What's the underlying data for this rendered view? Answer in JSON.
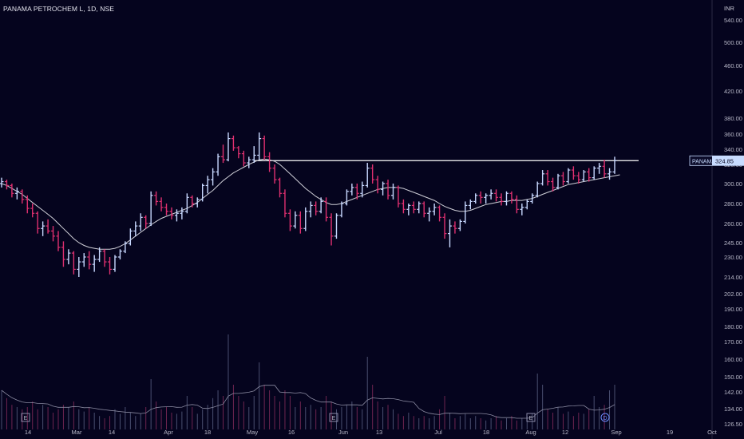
{
  "header": {
    "title": "PANAMA PETROCHEM L, 1D, NSE",
    "currency": "INR"
  },
  "colors": {
    "background": "#05041e",
    "up": "#c8d8ff",
    "down": "#e03070",
    "ma_line": "#d0d0d8",
    "resistance": "#ffffff",
    "price_tag": "#c8dcff",
    "volume_up": "#4a4f70",
    "volume_down": "#6e2550",
    "volume_ma": "#8a8aa0"
  },
  "chart_data": {
    "type": "ohlc",
    "scale": "log",
    "symbol_tag": "PANAMAPET",
    "last_price": "324.85",
    "resistance_level": 324.85,
    "ylim": [
      126.5,
      560
    ],
    "yticks": [
      "540.00",
      "500.00",
      "460.00",
      "420.00",
      "380.00",
      "360.00",
      "340.00",
      "320.00",
      "300.00",
      "280.00",
      "260.00",
      "245.00",
      "230.00",
      "214.00",
      "202.00",
      "190.00",
      "180.00",
      "170.00",
      "160.00",
      "150.00",
      "142.00",
      "134.00",
      "126.50"
    ],
    "xlabels": [
      "14",
      "Mar",
      "14",
      "Apr",
      "18",
      "May",
      "16",
      "Jun",
      "13",
      "Jul",
      "18",
      "Aug",
      "12",
      "Sep",
      "19",
      "Oct"
    ],
    "events": [
      "E",
      "E",
      "E",
      "D"
    ],
    "series": [
      {
        "kind": "price",
        "points": [
          [
            300,
            306,
            296,
            302
          ],
          [
            302,
            304,
            294,
            298
          ],
          [
            298,
            300,
            286,
            290
          ],
          [
            290,
            296,
            284,
            292
          ],
          [
            292,
            294,
            280,
            284
          ],
          [
            284,
            288,
            270,
            275
          ],
          [
            275,
            280,
            266,
            270
          ],
          [
            270,
            272,
            252,
            256
          ],
          [
            256,
            262,
            250,
            258
          ],
          [
            258,
            264,
            252,
            254
          ],
          [
            254,
            258,
            246,
            250
          ],
          [
            250,
            254,
            236,
            240
          ],
          [
            240,
            246,
            222,
            228
          ],
          [
            228,
            238,
            224,
            234
          ],
          [
            234,
            236,
            216,
            220
          ],
          [
            220,
            230,
            214,
            226
          ],
          [
            226,
            234,
            222,
            230
          ],
          [
            230,
            236,
            220,
            224
          ],
          [
            224,
            232,
            218,
            228
          ],
          [
            228,
            240,
            226,
            236
          ],
          [
            236,
            238,
            222,
            226
          ],
          [
            226,
            230,
            216,
            220
          ],
          [
            220,
            232,
            218,
            230
          ],
          [
            230,
            238,
            228,
            236
          ],
          [
            236,
            246,
            234,
            244
          ],
          [
            244,
            256,
            242,
            254
          ],
          [
            254,
            262,
            250,
            258
          ],
          [
            258,
            270,
            254,
            266
          ],
          [
            266,
            268,
            256,
            260
          ],
          [
            260,
            292,
            258,
            288
          ],
          [
            288,
            292,
            278,
            282
          ],
          [
            282,
            286,
            272,
            276
          ],
          [
            276,
            280,
            268,
            272
          ],
          [
            272,
            276,
            264,
            268
          ],
          [
            268,
            274,
            262,
            270
          ],
          [
            270,
            276,
            264,
            272
          ],
          [
            272,
            290,
            270,
            286
          ],
          [
            286,
            288,
            276,
            280
          ],
          [
            280,
            286,
            276,
            284
          ],
          [
            284,
            300,
            282,
            298
          ],
          [
            298,
            308,
            290,
            304
          ],
          [
            304,
            316,
            298,
            312
          ],
          [
            312,
            334,
            308,
            330
          ],
          [
            330,
            346,
            322,
            326
          ],
          [
            326,
            362,
            324,
            354
          ],
          [
            354,
            358,
            338,
            342
          ],
          [
            342,
            344,
            328,
            334
          ],
          [
            334,
            338,
            318,
            322
          ],
          [
            322,
            330,
            316,
            326
          ],
          [
            326,
            344,
            322,
            332
          ],
          [
            332,
            362,
            326,
            354
          ],
          [
            354,
            358,
            326,
            330
          ],
          [
            330,
            336,
            312,
            316
          ],
          [
            316,
            320,
            300,
            304
          ],
          [
            304,
            306,
            286,
            290
          ],
          [
            290,
            294,
            266,
            270
          ],
          [
            270,
            274,
            254,
            258
          ],
          [
            258,
            272,
            256,
            268
          ],
          [
            268,
            272,
            252,
            256
          ],
          [
            256,
            276,
            254,
            272
          ],
          [
            272,
            282,
            266,
            278
          ],
          [
            278,
            282,
            268,
            272
          ],
          [
            272,
            286,
            270,
            282
          ],
          [
            282,
            286,
            262,
            266
          ],
          [
            266,
            270,
            242,
            250
          ],
          [
            250,
            270,
            248,
            268
          ],
          [
            268,
            282,
            266,
            280
          ],
          [
            280,
            294,
            278,
            292
          ],
          [
            292,
            300,
            288,
            296
          ],
          [
            296,
            300,
            284,
            290
          ],
          [
            290,
            302,
            286,
            298
          ],
          [
            298,
            322,
            296,
            316
          ],
          [
            316,
            320,
            300,
            304
          ],
          [
            304,
            308,
            290,
            294
          ],
          [
            294,
            302,
            288,
            300
          ],
          [
            300,
            304,
            284,
            288
          ],
          [
            288,
            300,
            284,
            296
          ],
          [
            296,
            298,
            276,
            280
          ],
          [
            280,
            284,
            270,
            274
          ],
          [
            274,
            280,
            268,
            278
          ],
          [
            278,
            282,
            270,
            274
          ],
          [
            274,
            282,
            270,
            280
          ],
          [
            280,
            282,
            266,
            270
          ],
          [
            270,
            276,
            262,
            272
          ],
          [
            272,
            280,
            268,
            276
          ],
          [
            276,
            278,
            262,
            266
          ],
          [
            266,
            270,
            248,
            252
          ],
          [
            252,
            264,
            240,
            258
          ],
          [
            258,
            262,
            252,
            256
          ],
          [
            256,
            264,
            254,
            262
          ],
          [
            262,
            282,
            260,
            278
          ],
          [
            278,
            284,
            274,
            282
          ],
          [
            282,
            290,
            280,
            288
          ],
          [
            288,
            292,
            280,
            286
          ],
          [
            286,
            290,
            280,
            288
          ],
          [
            288,
            294,
            284,
            290
          ],
          [
            290,
            294,
            282,
            286
          ],
          [
            286,
            290,
            278,
            282
          ],
          [
            282,
            292,
            278,
            290
          ],
          [
            290,
            292,
            280,
            284
          ],
          [
            284,
            288,
            270,
            274
          ],
          [
            274,
            280,
            268,
            276
          ],
          [
            276,
            284,
            274,
            282
          ],
          [
            282,
            290,
            280,
            288
          ],
          [
            288,
            302,
            286,
            300
          ],
          [
            300,
            314,
            298,
            310
          ],
          [
            310,
            314,
            298,
            302
          ],
          [
            302,
            306,
            292,
            296
          ],
          [
            296,
            310,
            294,
            308
          ],
          [
            308,
            312,
            298,
            302
          ],
          [
            302,
            316,
            300,
            314
          ],
          [
            314,
            318,
            304,
            308
          ],
          [
            308,
            312,
            300,
            304
          ],
          [
            304,
            314,
            302,
            312
          ],
          [
            312,
            316,
            302,
            306
          ],
          [
            306,
            318,
            304,
            316
          ],
          [
            316,
            322,
            310,
            318
          ],
          [
            318,
            326,
            306,
            310
          ],
          [
            310,
            316,
            304,
            312
          ],
          [
            312,
            330,
            310,
            324.85
          ]
        ]
      },
      {
        "kind": "ma",
        "points": [
          300,
          298,
          295,
          292,
          289,
          285,
          281,
          277,
          273,
          269,
          265,
          260,
          256,
          252,
          248,
          245,
          242,
          240,
          239,
          238,
          238,
          238,
          239,
          241,
          244,
          247,
          250,
          253,
          256,
          259,
          262,
          265,
          267,
          269,
          271,
          273,
          275,
          278,
          281,
          285,
          289,
          293,
          298,
          303,
          307,
          311,
          314,
          317,
          320,
          323,
          326,
          327,
          326,
          324,
          320,
          315,
          310,
          305,
          300,
          295,
          291,
          287,
          284,
          281,
          279,
          279,
          280,
          282,
          284,
          286,
          288,
          290,
          292,
          294,
          295,
          296,
          296,
          296,
          295,
          293,
          291,
          289,
          287,
          285,
          283,
          280,
          277,
          275,
          273,
          272,
          272,
          273,
          275,
          277,
          279,
          280,
          281,
          282,
          282,
          283,
          283,
          283,
          284,
          285,
          287,
          289,
          291,
          293,
          295,
          297,
          299,
          300,
          301,
          302,
          303,
          304,
          305,
          306,
          307,
          308,
          309
        ]
      },
      {
        "kind": "volume",
        "points": [
          0.35,
          0.28,
          0.22,
          0.2,
          0.18,
          0.2,
          0.25,
          0.18,
          0.22,
          0.2,
          0.15,
          0.18,
          0.22,
          0.2,
          0.25,
          0.18,
          0.16,
          0.2,
          0.15,
          0.12,
          0.1,
          0.12,
          0.18,
          0.14,
          0.2,
          0.15,
          0.12,
          0.14,
          0.2,
          0.45,
          0.25,
          0.18,
          0.2,
          0.15,
          0.14,
          0.16,
          0.3,
          0.2,
          0.14,
          0.18,
          0.22,
          0.28,
          0.35,
          0.3,
          0.85,
          0.4,
          0.3,
          0.25,
          0.2,
          0.3,
          0.6,
          0.4,
          0.35,
          0.3,
          0.25,
          0.35,
          0.3,
          0.2,
          0.25,
          0.2,
          0.22,
          0.18,
          0.2,
          0.3,
          0.25,
          0.18,
          0.2,
          0.22,
          0.25,
          0.2,
          0.18,
          0.65,
          0.4,
          0.25,
          0.2,
          0.22,
          0.18,
          0.14,
          0.12,
          0.15,
          0.12,
          0.1,
          0.12,
          0.1,
          0.12,
          0.18,
          0.3,
          0.15,
          0.1,
          0.12,
          0.14,
          0.1,
          0.12,
          0.1,
          0.08,
          0.1,
          0.12,
          0.08,
          0.1,
          0.12,
          0.08,
          0.1,
          0.12,
          0.14,
          0.5,
          0.4,
          0.18,
          0.15,
          0.2,
          0.14,
          0.16,
          0.12,
          0.15,
          0.14,
          0.18,
          0.3,
          0.2,
          0.22,
          0.35,
          0.4
        ]
      }
    ]
  }
}
